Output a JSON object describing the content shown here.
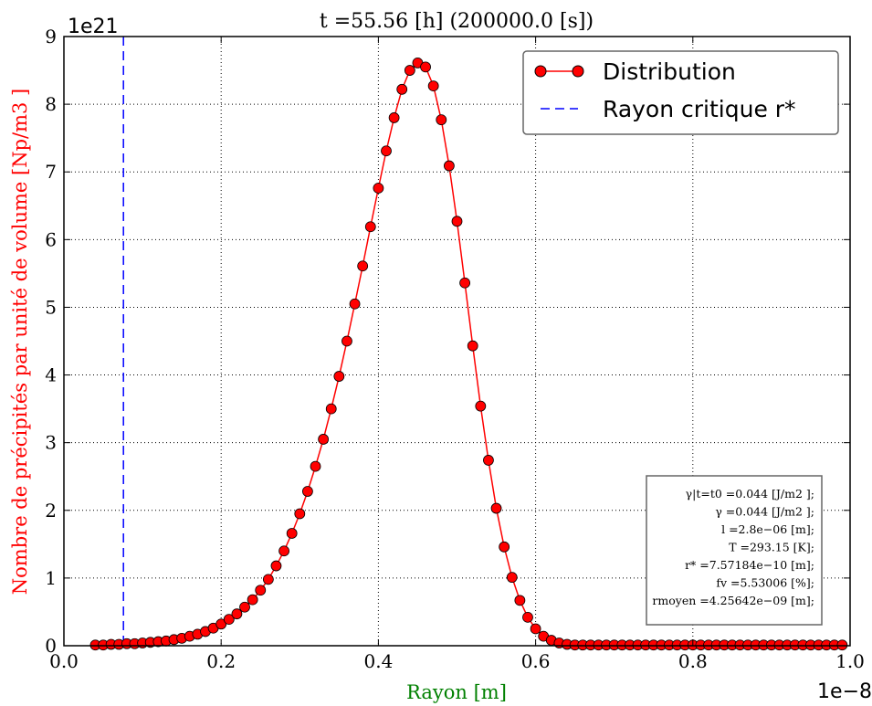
{
  "chart_data": {
    "type": "line",
    "title": "t =55.56 [h] (200000.0 [s])",
    "xlabel": "Rayon [m]",
    "ylabel": "Nombre de précipités par unité de volume [Np/m3 ]",
    "x_offset_label": "1e−8",
    "y_offset_label": "1e21",
    "xlim": [
      0.0,
      1.0
    ],
    "ylim": [
      0,
      9
    ],
    "x_ticks": [
      "0.0",
      "0.2",
      "0.4",
      "0.6",
      "0.8",
      "1.0"
    ],
    "y_ticks": [
      "0",
      "1",
      "2",
      "3",
      "4",
      "5",
      "6",
      "7",
      "8",
      "9"
    ],
    "grid": true,
    "legend_position": "top-right",
    "series": [
      {
        "name": "Distribution",
        "style": "line-with-markers",
        "color": "#ff0000",
        "x": [
          0.04,
          0.05,
          0.06,
          0.07,
          0.08,
          0.09,
          0.1,
          0.11,
          0.12,
          0.13,
          0.14,
          0.15,
          0.16,
          0.17,
          0.18,
          0.19,
          0.2,
          0.21,
          0.22,
          0.23,
          0.24,
          0.25,
          0.26,
          0.27,
          0.28,
          0.29,
          0.3,
          0.31,
          0.32,
          0.33,
          0.34,
          0.35,
          0.36,
          0.37,
          0.38,
          0.39,
          0.4,
          0.41,
          0.42,
          0.43,
          0.44,
          0.45,
          0.46,
          0.47,
          0.48,
          0.49,
          0.5,
          0.51,
          0.52,
          0.53,
          0.54,
          0.55,
          0.56,
          0.57,
          0.58,
          0.59,
          0.6,
          0.61,
          0.62,
          0.63,
          0.64,
          0.65,
          0.66,
          0.67,
          0.68,
          0.69,
          0.7,
          0.71,
          0.72,
          0.73,
          0.74,
          0.75,
          0.76,
          0.77,
          0.78,
          0.79,
          0.8,
          0.81,
          0.82,
          0.83,
          0.84,
          0.85,
          0.86,
          0.87,
          0.88,
          0.89,
          0.9,
          0.91,
          0.92,
          0.93,
          0.94,
          0.95,
          0.96,
          0.97,
          0.98,
          0.99
        ],
        "y": [
          0.01,
          0.01,
          0.02,
          0.02,
          0.03,
          0.03,
          0.04,
          0.05,
          0.06,
          0.07,
          0.09,
          0.11,
          0.14,
          0.17,
          0.21,
          0.26,
          0.32,
          0.39,
          0.47,
          0.57,
          0.68,
          0.82,
          0.98,
          1.18,
          1.4,
          1.66,
          1.95,
          2.28,
          2.65,
          3.05,
          3.5,
          3.98,
          4.5,
          5.05,
          5.61,
          6.19,
          6.76,
          7.31,
          7.8,
          8.22,
          8.5,
          8.61,
          8.55,
          8.27,
          7.77,
          7.09,
          6.27,
          5.36,
          4.43,
          3.54,
          2.74,
          2.03,
          1.46,
          1.01,
          0.67,
          0.42,
          0.25,
          0.14,
          0.08,
          0.04,
          0.02,
          0.01,
          0.01,
          0.01,
          0.01,
          0.01,
          0.01,
          0.01,
          0.01,
          0.01,
          0.01,
          0.01,
          0.01,
          0.01,
          0.01,
          0.01,
          0.01,
          0.01,
          0.01,
          0.01,
          0.01,
          0.01,
          0.01,
          0.01,
          0.01,
          0.01,
          0.01,
          0.01,
          0.01,
          0.01,
          0.01,
          0.01,
          0.01,
          0.01,
          0.01,
          0.01
        ]
      },
      {
        "name": "Rayon critique r*",
        "style": "dashed-vertical",
        "color": "#0000ff",
        "x_value": 0.0757184
      }
    ],
    "annotation_box": [
      "γ|t=t0 =0.044 [J/m2 ];",
      "γ =0.044 [J/m2 ];",
      "l =2.8e−06 [m];",
      "T =293.15 [K];",
      "r* =7.57184e−10 [m];",
      "fv =5.53006 [%];",
      "rmoyen =4.25642e−09 [m];"
    ]
  }
}
